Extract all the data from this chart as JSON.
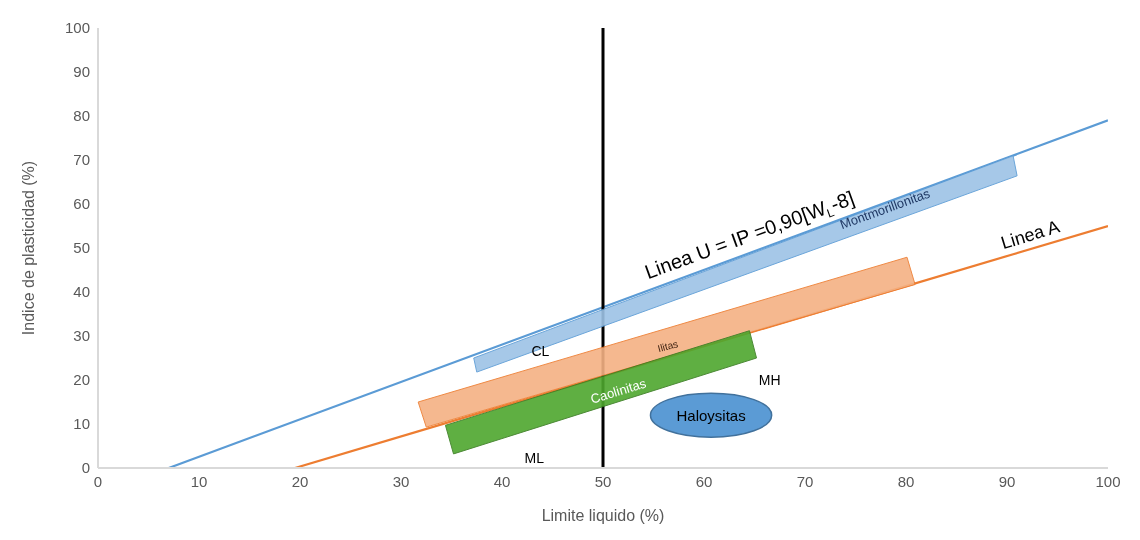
{
  "chart_data": {
    "type": "line",
    "xlabel": "Limite liquido (%)",
    "ylabel": "Indice de plasticidad (%)",
    "series": [
      {
        "type": "line",
        "color": "#5b9bd5",
        "x": [
          7,
          100
        ],
        "values": [
          0,
          79
        ]
      },
      {
        "type": "line",
        "color": "#ed7d31",
        "x": [
          19.5,
          100
        ],
        "values": [
          0,
          55
        ]
      }
    ],
    "xlim": [
      0,
      100
    ],
    "xticks": [
      0,
      10,
      20,
      30,
      40,
      50,
      60,
      70,
      80,
      90,
      100
    ],
    "ylim": [
      0,
      100
    ],
    "yticks": [
      0,
      10,
      20,
      30,
      40,
      50,
      60,
      70,
      80,
      90,
      100
    ],
    "grid": false,
    "marker": "none",
    "line_style": "solid",
    "ref_lines": [
      {
        "axis": "x",
        "value": 50,
        "color": "#000000"
      }
    ],
    "annotations": [
      "Linea U = IP =0,90[W$_{L}$-8]",
      "Linea A",
      "Montmorillonitas",
      "Ilitas",
      "Caolinitas",
      "Haloysitas",
      "CL",
      "MH",
      "ML"
    ]
  }
}
